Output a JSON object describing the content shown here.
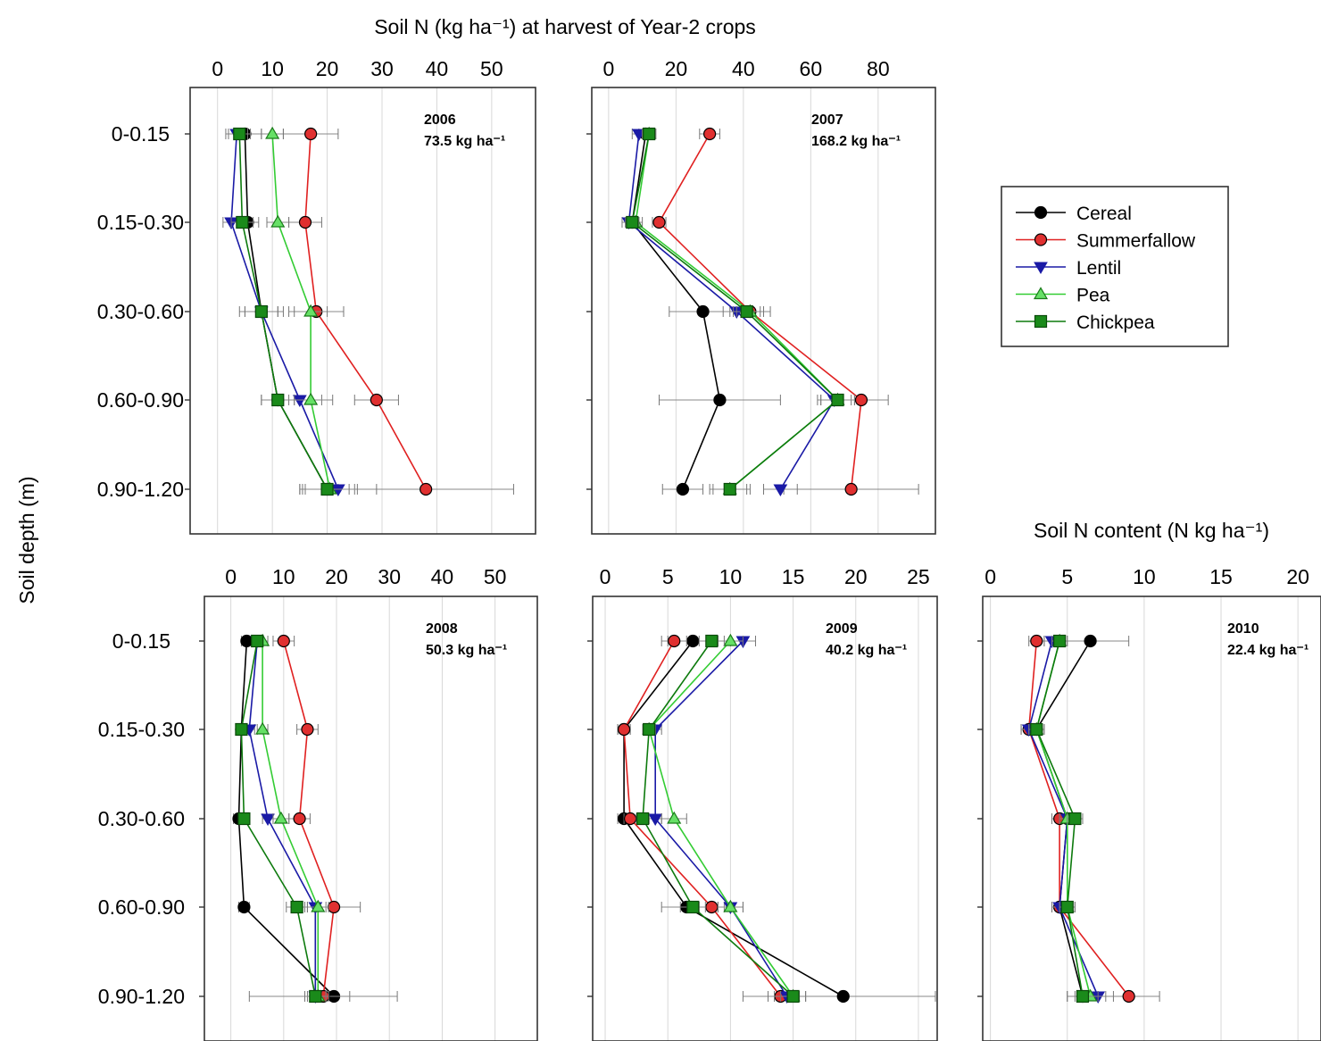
{
  "figure": {
    "top_title": "Soil N (kg ha⁻¹) at harvest of Year-2 crops",
    "right_title": "Soil N content (N kg ha⁻¹)",
    "ylabel": "Soil depth (m)",
    "depth_labels": [
      "0-0.15",
      "0.15-0.30",
      "0.30-0.60",
      "0.60-0.90",
      "0.90-1.20"
    ]
  },
  "legend": {
    "placement": "right",
    "items": [
      {
        "name": "Cereal",
        "color": "#000000",
        "marker": "circle"
      },
      {
        "name": "Summerfallow",
        "color": "#e02020",
        "marker": "circle"
      },
      {
        "name": "Lentil",
        "color": "#1a1aa6",
        "marker": "triangle-down"
      },
      {
        "name": "Pea",
        "color": "#33cc33",
        "marker": "triangle-up"
      },
      {
        "name": "Chickpea",
        "color": "#0d7a0d",
        "marker": "square"
      }
    ]
  },
  "chart_data": [
    {
      "type": "line",
      "year": "2006",
      "annotation_year": "2006",
      "annotation_total": "73.5 kg ha⁻¹",
      "xlim": [
        -5,
        58
      ],
      "xticks": [
        0,
        10,
        20,
        30,
        40,
        50
      ],
      "categories": [
        "0-0.15",
        "0.15-0.30",
        "0.30-0.60",
        "0.60-0.90",
        "0.90-1.20"
      ],
      "series": [
        {
          "name": "Cereal",
          "values": [
            5,
            5.5,
            8,
            11,
            20
          ],
          "err": [
            3,
            2,
            4,
            3,
            5
          ]
        },
        {
          "name": "Summerfallow",
          "values": [
            17,
            16,
            18,
            29,
            38
          ],
          "err": [
            5,
            3,
            5,
            4,
            16
          ]
        },
        {
          "name": "Lentil",
          "values": [
            3.5,
            2.5,
            8,
            15,
            22
          ],
          "err": [
            2,
            1.5,
            3,
            4,
            7
          ]
        },
        {
          "name": "Pea",
          "values": [
            10,
            11,
            17,
            17,
            20.5
          ],
          "err": [
            2,
            2,
            3,
            4,
            5
          ]
        },
        {
          "name": "Chickpea",
          "values": [
            4,
            4.5,
            8,
            11,
            20
          ],
          "err": [
            2,
            2,
            3,
            3,
            4
          ]
        }
      ]
    },
    {
      "type": "line",
      "year": "2007",
      "annotation_year": "2007",
      "annotation_total": "168.2 kg ha⁻¹",
      "xlim": [
        -5,
        97
      ],
      "xticks": [
        0,
        20,
        40,
        60,
        80
      ],
      "categories": [
        "0-0.15",
        "0.15-0.30",
        "0.30-0.60",
        "0.60-0.90",
        "0.90-1.20"
      ],
      "series": [
        {
          "name": "Cereal",
          "values": [
            11,
            7,
            28,
            33,
            22
          ],
          "err": [
            2,
            2,
            10,
            18,
            6
          ]
        },
        {
          "name": "Summerfallow",
          "values": [
            30,
            15,
            42,
            75,
            72
          ],
          "err": [
            3,
            2,
            6,
            8,
            20
          ]
        },
        {
          "name": "Lentil",
          "values": [
            9,
            6,
            38,
            67,
            51
          ],
          "err": [
            2,
            2,
            4,
            5,
            5
          ]
        },
        {
          "name": "Pea",
          "values": [
            12,
            8,
            42,
            68,
            36
          ],
          "err": [
            2,
            2,
            4,
            5,
            6
          ]
        },
        {
          "name": "Chickpea",
          "values": [
            12,
            7,
            41,
            68,
            36
          ],
          "err": [
            2,
            2,
            4,
            5,
            5
          ]
        }
      ]
    },
    {
      "type": "line",
      "year": "2008",
      "annotation_year": "2008",
      "annotation_total": "50.3 kg ha⁻¹",
      "xlim": [
        -5,
        58
      ],
      "xticks": [
        0,
        10,
        20,
        30,
        40,
        50
      ],
      "categories": [
        "0-0.15",
        "0.15-0.30",
        "0.30-0.60",
        "0.60-0.90",
        "0.90-1.20"
      ],
      "series": [
        {
          "name": "Cereal",
          "values": [
            3,
            2,
            1.5,
            2.5,
            19.5
          ],
          "err": [
            1,
            1,
            1,
            1,
            3
          ]
        },
        {
          "name": "Summerfallow",
          "values": [
            10,
            14.5,
            13,
            19.5,
            17.5
          ],
          "err": [
            2,
            2,
            2,
            5,
            14
          ]
        },
        {
          "name": "Lentil",
          "values": [
            5,
            3.5,
            7,
            16,
            16
          ],
          "err": [
            1,
            1,
            1,
            2,
            2
          ]
        },
        {
          "name": "Pea",
          "values": [
            6,
            6,
            9.5,
            16.5,
            16.5
          ],
          "err": [
            1,
            1,
            1.5,
            2,
            2
          ]
        },
        {
          "name": "Chickpea",
          "values": [
            5,
            2,
            2.5,
            12.5,
            16
          ],
          "err": [
            1,
            1,
            1,
            2,
            2
          ]
        }
      ]
    },
    {
      "type": "line",
      "year": "2009",
      "annotation_year": "2009",
      "annotation_total": "40.2 kg ha⁻¹",
      "xlim": [
        -1,
        26.5
      ],
      "xticks": [
        0,
        5,
        10,
        15,
        20,
        25
      ],
      "categories": [
        "0-0.15",
        "0.15-0.30",
        "0.30-0.60",
        "0.60-0.90",
        "0.90-1.20"
      ],
      "series": [
        {
          "name": "Cereal",
          "values": [
            7,
            1.5,
            1.5,
            6.5,
            19
          ],
          "err": [
            2,
            0.5,
            0.5,
            2,
            8
          ]
        },
        {
          "name": "Summerfallow",
          "values": [
            5.5,
            1.5,
            2,
            8.5,
            14
          ],
          "err": [
            1,
            0.5,
            0.5,
            1,
            1
          ]
        },
        {
          "name": "Lentil",
          "values": [
            11,
            4,
            4,
            10,
            14.5
          ],
          "err": [
            1,
            0.5,
            0.5,
            1,
            1
          ]
        },
        {
          "name": "Pea",
          "values": [
            10,
            3.5,
            5.5,
            10,
            15
          ],
          "err": [
            1,
            0.5,
            1,
            1,
            1
          ]
        },
        {
          "name": "Chickpea",
          "values": [
            8.5,
            3.5,
            3,
            7,
            15
          ],
          "err": [
            1,
            0.5,
            0.5,
            1,
            1
          ]
        }
      ]
    },
    {
      "type": "line",
      "year": "2010",
      "annotation_year": "2010",
      "annotation_total": "22.4 kg ha⁻¹",
      "xlim": [
        -0.5,
        21.5
      ],
      "xticks": [
        0,
        5,
        10,
        15,
        20
      ],
      "categories": [
        "0-0.15",
        "0.15-0.30",
        "0.30-0.60",
        "0.60-0.90",
        "0.90-1.20"
      ],
      "series": [
        {
          "name": "Cereal",
          "values": [
            6.5,
            3,
            5,
            4.5,
            6
          ],
          "err": [
            2.5,
            0.5,
            0.5,
            0.5,
            1
          ]
        },
        {
          "name": "Summerfallow",
          "values": [
            3,
            2.5,
            4.5,
            4.5,
            9
          ],
          "err": [
            0.5,
            0.5,
            0.5,
            0.5,
            2
          ]
        },
        {
          "name": "Lentil",
          "values": [
            4,
            2.5,
            5,
            4.5,
            7
          ],
          "err": [
            0.5,
            0.5,
            0.5,
            0.5,
            1
          ]
        },
        {
          "name": "Pea",
          "values": [
            4.5,
            3,
            5,
            5,
            6.5
          ],
          "err": [
            0.5,
            0.5,
            0.5,
            0.5,
            1
          ]
        },
        {
          "name": "Chickpea",
          "values": [
            4.5,
            3,
            5.5,
            5,
            6
          ],
          "err": [
            0.5,
            0.5,
            0.5,
            0.5,
            1
          ]
        }
      ]
    }
  ]
}
